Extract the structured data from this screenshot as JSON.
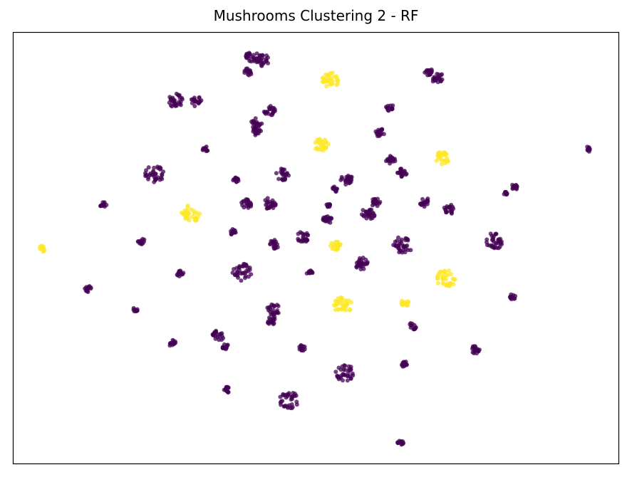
{
  "chart_data": {
    "type": "scatter",
    "title": "Mushrooms Clustering 2 - RF",
    "xlabel": "",
    "ylabel": "",
    "xlim": [
      0,
      100
    ],
    "ylim": [
      0,
      100
    ],
    "axes_ticks": false,
    "grid": false,
    "colors": {
      "class_0": "#440154",
      "class_1": "#fde725"
    },
    "clusters": [
      {
        "x": 39.3,
        "y": 94.5,
        "r": 1.1,
        "class": 0
      },
      {
        "x": 41.2,
        "y": 93.5,
        "r": 1.1,
        "class": 0
      },
      {
        "x": 38.9,
        "y": 90.8,
        "r": 0.7,
        "class": 0
      },
      {
        "x": 52.5,
        "y": 88.9,
        "r": 1.4,
        "class": 1
      },
      {
        "x": 68.7,
        "y": 90.8,
        "r": 0.7,
        "class": 0
      },
      {
        "x": 70.1,
        "y": 89.4,
        "r": 1.0,
        "class": 0
      },
      {
        "x": 27.0,
        "y": 84.1,
        "r": 1.3,
        "class": 0
      },
      {
        "x": 30.3,
        "y": 83.9,
        "r": 0.9,
        "class": 0
      },
      {
        "x": 62.3,
        "y": 82.5,
        "r": 0.7,
        "class": 0
      },
      {
        "x": 42.4,
        "y": 81.8,
        "r": 1.0,
        "class": 0
      },
      {
        "x": 40.1,
        "y": 78.8,
        "r": 1.0,
        "class": 0
      },
      {
        "x": 40.3,
        "y": 76.9,
        "r": 0.7,
        "class": 0
      },
      {
        "x": 60.6,
        "y": 76.6,
        "r": 0.8,
        "class": 0
      },
      {
        "x": 50.9,
        "y": 73.8,
        "r": 1.2,
        "class": 1
      },
      {
        "x": 31.8,
        "y": 72.9,
        "r": 0.5,
        "class": 0
      },
      {
        "x": 95.1,
        "y": 72.9,
        "r": 0.5,
        "class": 0
      },
      {
        "x": 71.0,
        "y": 70.8,
        "r": 1.2,
        "class": 1
      },
      {
        "x": 62.4,
        "y": 70.3,
        "r": 0.8,
        "class": 0
      },
      {
        "x": 64.3,
        "y": 67.5,
        "r": 0.8,
        "class": 0
      },
      {
        "x": 23.4,
        "y": 67.1,
        "r": 1.6,
        "class": 0
      },
      {
        "x": 44.5,
        "y": 67.0,
        "r": 1.1,
        "class": 0
      },
      {
        "x": 55.1,
        "y": 65.8,
        "r": 1.0,
        "class": 0
      },
      {
        "x": 36.7,
        "y": 65.6,
        "r": 0.6,
        "class": 0
      },
      {
        "x": 82.9,
        "y": 64.2,
        "r": 0.6,
        "class": 0
      },
      {
        "x": 53.2,
        "y": 63.6,
        "r": 0.5,
        "class": 0
      },
      {
        "x": 81.4,
        "y": 62.5,
        "r": 0.4,
        "class": 0
      },
      {
        "x": 15.0,
        "y": 59.8,
        "r": 0.6,
        "class": 0
      },
      {
        "x": 38.6,
        "y": 60.1,
        "r": 0.9,
        "class": 0
      },
      {
        "x": 42.4,
        "y": 60.3,
        "r": 1.1,
        "class": 0
      },
      {
        "x": 51.9,
        "y": 59.8,
        "r": 0.5,
        "class": 0
      },
      {
        "x": 59.9,
        "y": 60.6,
        "r": 0.8,
        "class": 0
      },
      {
        "x": 68.0,
        "y": 60.6,
        "r": 0.9,
        "class": 0
      },
      {
        "x": 72.0,
        "y": 58.9,
        "r": 0.9,
        "class": 0
      },
      {
        "x": 29.3,
        "y": 57.8,
        "r": 1.6,
        "class": 1
      },
      {
        "x": 58.7,
        "y": 57.8,
        "r": 1.2,
        "class": 0
      },
      {
        "x": 51.9,
        "y": 56.4,
        "r": 0.8,
        "class": 0
      },
      {
        "x": 4.8,
        "y": 49.7,
        "r": 0.6,
        "class": 1
      },
      {
        "x": 21.2,
        "y": 51.5,
        "r": 0.6,
        "class": 0
      },
      {
        "x": 36.4,
        "y": 53.6,
        "r": 0.6,
        "class": 0
      },
      {
        "x": 47.9,
        "y": 52.5,
        "r": 1.0,
        "class": 0
      },
      {
        "x": 43.2,
        "y": 50.8,
        "r": 0.8,
        "class": 0
      },
      {
        "x": 53.3,
        "y": 50.4,
        "r": 0.9,
        "class": 1
      },
      {
        "x": 64.4,
        "y": 50.6,
        "r": 1.6,
        "class": 0
      },
      {
        "x": 79.3,
        "y": 51.5,
        "r": 1.6,
        "class": 0
      },
      {
        "x": 57.5,
        "y": 46.3,
        "r": 1.2,
        "class": 0
      },
      {
        "x": 27.6,
        "y": 44.1,
        "r": 0.6,
        "class": 0
      },
      {
        "x": 37.8,
        "y": 44.3,
        "r": 1.6,
        "class": 0
      },
      {
        "x": 49.0,
        "y": 44.3,
        "r": 0.5,
        "class": 0
      },
      {
        "x": 71.5,
        "y": 42.8,
        "r": 1.6,
        "class": 1
      },
      {
        "x": 12.5,
        "y": 40.5,
        "r": 0.6,
        "class": 0
      },
      {
        "x": 20.2,
        "y": 35.6,
        "r": 0.4,
        "class": 0
      },
      {
        "x": 43.1,
        "y": 35.8,
        "r": 1.1,
        "class": 0
      },
      {
        "x": 54.5,
        "y": 36.7,
        "r": 1.5,
        "class": 1
      },
      {
        "x": 64.8,
        "y": 37.2,
        "r": 0.7,
        "class": 1
      },
      {
        "x": 42.7,
        "y": 33.2,
        "r": 0.8,
        "class": 0
      },
      {
        "x": 82.5,
        "y": 38.6,
        "r": 0.5,
        "class": 0
      },
      {
        "x": 33.9,
        "y": 29.6,
        "r": 1.0,
        "class": 0
      },
      {
        "x": 66.0,
        "y": 31.9,
        "r": 0.7,
        "class": 0
      },
      {
        "x": 35.2,
        "y": 26.9,
        "r": 0.6,
        "class": 0
      },
      {
        "x": 26.3,
        "y": 27.9,
        "r": 0.6,
        "class": 0
      },
      {
        "x": 47.8,
        "y": 26.7,
        "r": 0.6,
        "class": 0
      },
      {
        "x": 76.3,
        "y": 26.4,
        "r": 0.8,
        "class": 0
      },
      {
        "x": 54.9,
        "y": 20.9,
        "r": 1.6,
        "class": 0
      },
      {
        "x": 64.6,
        "y": 23.0,
        "r": 0.6,
        "class": 0
      },
      {
        "x": 35.3,
        "y": 17.1,
        "r": 0.6,
        "class": 0
      },
      {
        "x": 45.6,
        "y": 14.6,
        "r": 1.6,
        "class": 0
      },
      {
        "x": 64.0,
        "y": 4.7,
        "r": 0.5,
        "class": 0
      }
    ]
  }
}
